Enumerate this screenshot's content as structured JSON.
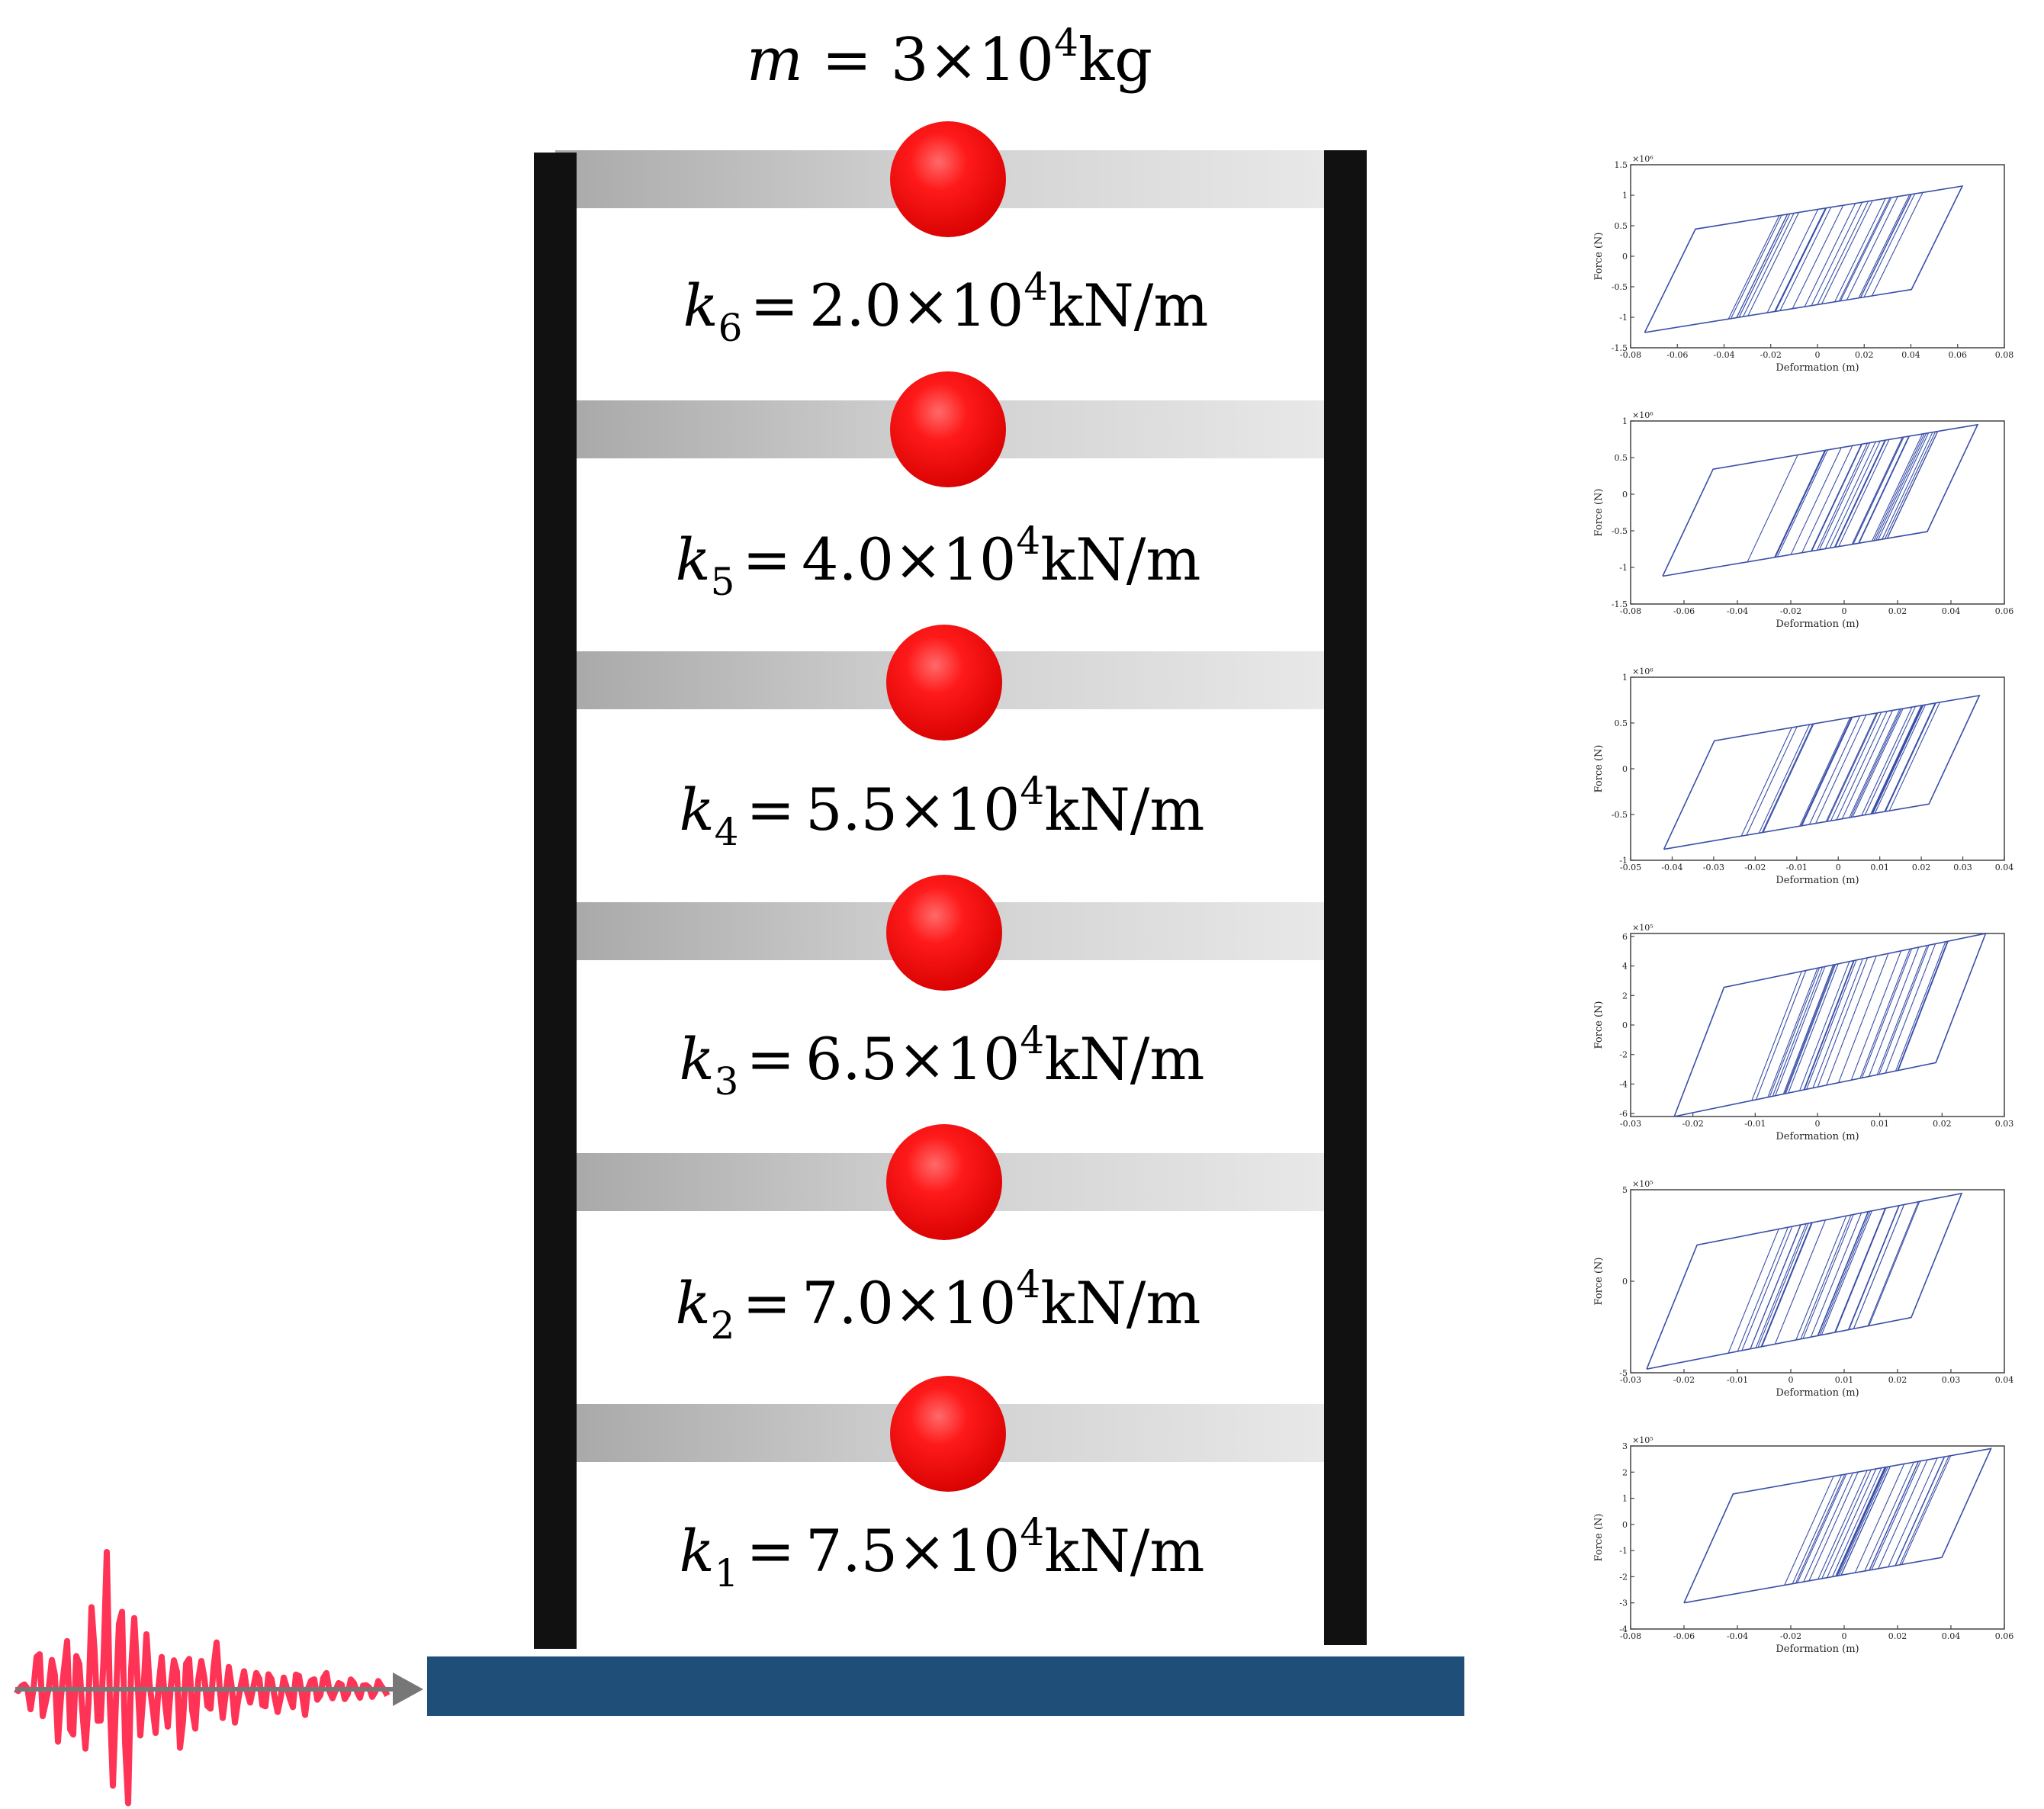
{
  "mass_label": {
    "prefix": "m",
    "value": " = 3×10",
    "exp": "4",
    "unit": "kg"
  },
  "stories": [
    {
      "sym": "k",
      "sub": "6",
      "value": "2.0×10",
      "exp": "4",
      "unit": "kN/m"
    },
    {
      "sym": "k",
      "sub": "5",
      "value": "4.0×10",
      "exp": "4",
      "unit": "kN/m"
    },
    {
      "sym": "k",
      "sub": "4",
      "value": "5.5×10",
      "exp": "4",
      "unit": "kN/m"
    },
    {
      "sym": "k",
      "sub": "3",
      "value": "6.5×10",
      "exp": "4",
      "unit": "kN/m"
    },
    {
      "sym": "k",
      "sub": "2",
      "value": "7.0×10",
      "exp": "4",
      "unit": "kN/m"
    },
    {
      "sym": "k",
      "sub": "1",
      "value": "7.5×10",
      "exp": "4",
      "unit": "kN/m"
    }
  ],
  "colors": {
    "column": "#111111",
    "mass": "#ff0000",
    "ground": "#1f4e79",
    "excitation": "#ff3355",
    "arrow": "#777777",
    "hysteresis": "#3a4fa8"
  },
  "chart_data": [
    {
      "type": "line",
      "xlabel": "Deformation (m)",
      "ylabel": "Force (N)",
      "scale": "×10⁶",
      "xlim": [
        -0.08,
        0.08
      ],
      "ylim": [
        -1.5,
        1.5
      ],
      "xticks": [
        "-0.08",
        "-0.06",
        "-0.04",
        "-0.02",
        "0",
        "0.02",
        "0.04",
        "0.06",
        "0.08"
      ],
      "yticks": [
        "-1.5",
        "-1",
        "-0.5",
        "0",
        "0.5",
        "1",
        "1.5"
      ],
      "loop": {
        "xmin": -0.074,
        "xmax": 0.062,
        "fmin": -1.25,
        "fmax": 1.15,
        "yield": 1.0
      }
    },
    {
      "type": "line",
      "xlabel": "Deformation (m)",
      "ylabel": "Force (N)",
      "scale": "×10⁶",
      "xlim": [
        -0.08,
        0.06
      ],
      "ylim": [
        -1.5,
        1.0
      ],
      "xticks": [
        "-0.08",
        "-0.06",
        "-0.04",
        "-0.02",
        "0",
        "0.02",
        "0.04",
        "0.06"
      ],
      "yticks": [
        "-1.5",
        "-1",
        "-0.5",
        "0",
        "0.5",
        "1"
      ],
      "loop": {
        "xmin": -0.068,
        "xmax": 0.05,
        "fmin": -1.12,
        "fmax": 0.95,
        "yield": 0.75
      }
    },
    {
      "type": "line",
      "xlabel": "Deformation (m)",
      "ylabel": "Force (N)",
      "scale": "×10⁶",
      "xlim": [
        -0.05,
        0.04
      ],
      "ylim": [
        -1.0,
        1.0
      ],
      "xticks": [
        "-0.05",
        "-0.04",
        "-0.03",
        "-0.02",
        "-0.01",
        "0",
        "0.01",
        "0.02",
        "0.03",
        "0.04"
      ],
      "yticks": [
        "-1",
        "-0.5",
        "0",
        "0.5",
        "1"
      ],
      "loop": {
        "xmin": -0.042,
        "xmax": 0.034,
        "fmin": -0.88,
        "fmax": 0.8,
        "yield": 0.62
      }
    },
    {
      "type": "line",
      "xlabel": "Deformation (m)",
      "ylabel": "Force (N)",
      "scale": "×10⁵",
      "xlim": [
        -0.03,
        0.03
      ],
      "ylim": [
        -6.2,
        6.2
      ],
      "xticks": [
        "-0.03",
        "-0.02",
        "-0.01",
        "0",
        "0.01",
        "0.02",
        "0.03"
      ],
      "yticks": [
        "-6",
        "-4",
        "-2",
        "0",
        "2",
        "4",
        "6"
      ],
      "loop": {
        "xmin": -0.023,
        "xmax": 0.027,
        "fmin": -6.2,
        "fmax": 6.2,
        "yield": 4.8
      }
    },
    {
      "type": "line",
      "xlabel": "Deformation (m)",
      "ylabel": "Force (N)",
      "scale": "×10⁵",
      "xlim": [
        -0.03,
        0.04
      ],
      "ylim": [
        -5,
        5
      ],
      "xticks": [
        "-0.03",
        "-0.02",
        "-0.01",
        "0",
        "0.01",
        "0.02",
        "0.03",
        "0.04"
      ],
      "yticks": [
        "-5",
        "0",
        "5"
      ],
      "loop": {
        "xmin": -0.027,
        "xmax": 0.032,
        "fmin": -4.8,
        "fmax": 4.8,
        "yield": 3.3
      }
    },
    {
      "type": "line",
      "xlabel": "Deformation (m)",
      "ylabel": "Force (N)",
      "scale": "×10⁵",
      "xlim": [
        -0.08,
        0.06
      ],
      "ylim": [
        -4,
        3
      ],
      "xticks": [
        "-0.08",
        "-0.06",
        "-0.04",
        "-0.02",
        "0",
        "0.02",
        "0.04",
        "0.06"
      ],
      "yticks": [
        "-4",
        "-3",
        "-2",
        "-1",
        "0",
        "1",
        "2",
        "3"
      ],
      "loop": {
        "xmin": -0.06,
        "xmax": 0.055,
        "fmin": -3.0,
        "fmax": 2.9,
        "yield": 1.0
      }
    }
  ]
}
